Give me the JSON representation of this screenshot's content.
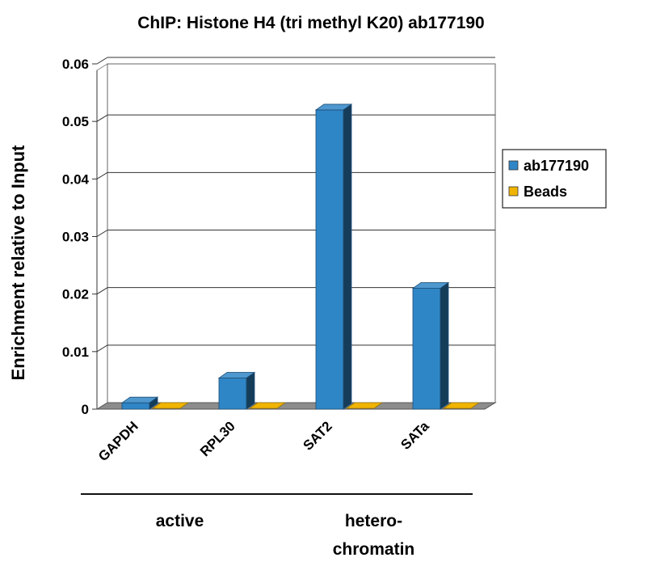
{
  "chart_data": {
    "type": "bar",
    "title": "ChIP: Histone H4 (tri methyl K20) ab177190",
    "ylabel": "Enrichment relative to Input",
    "xlabel": "",
    "categories": [
      "GAPDH",
      "RPL30",
      "SAT2",
      "SATa"
    ],
    "series": [
      {
        "name": "ab177190",
        "color": "#2f86c6",
        "values": [
          0.0011,
          0.0054,
          0.052,
          0.021
        ]
      },
      {
        "name": "Beads",
        "color": "#f0b400",
        "values": [
          0,
          0,
          0,
          0
        ]
      }
    ],
    "ylim": [
      0,
      0.06
    ],
    "yticks": [
      "0",
      "0.01",
      "0.02",
      "0.03",
      "0.04",
      "0.05",
      "0.06"
    ],
    "grid": true,
    "legend_position": "right",
    "groups": [
      {
        "label": "active",
        "categories": [
          "GAPDH",
          "RPL30"
        ]
      },
      {
        "label": "hetero-\nchromatin",
        "categories": [
          "SAT2",
          "SATa"
        ]
      }
    ]
  }
}
